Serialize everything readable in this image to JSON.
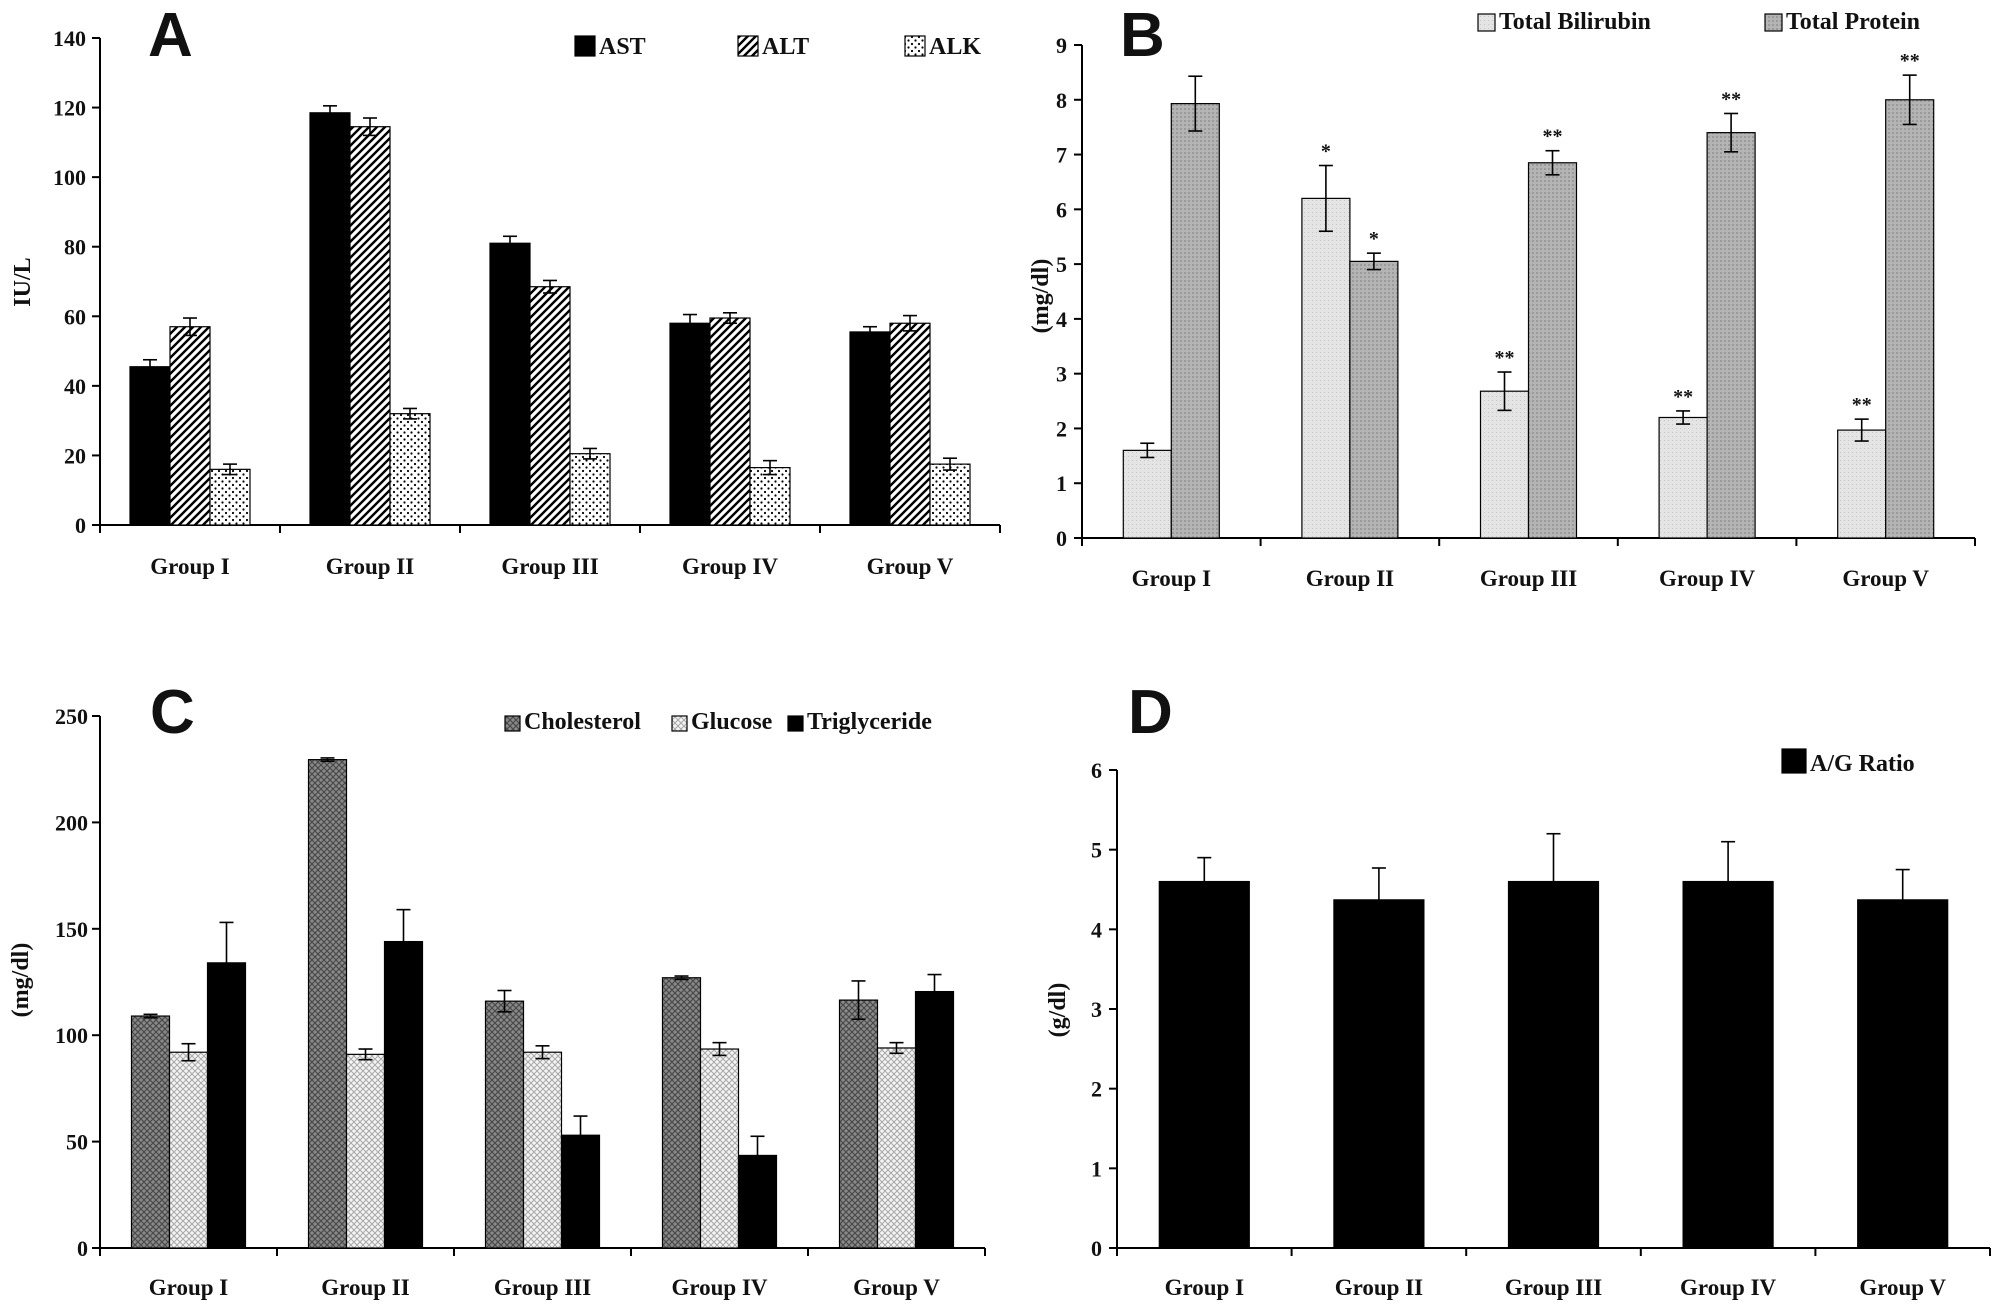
{
  "charts": [
    {
      "id": "A",
      "panel_label": "A",
      "ylabel": "IU/L",
      "yticks": [
        "0",
        "20",
        "40",
        "60",
        "80",
        "100",
        "120",
        "140"
      ],
      "ylim": [
        0,
        140
      ],
      "categories": [
        "Group I",
        "Group II",
        "Group III",
        "Group IV",
        "Group V"
      ],
      "legend": [
        "AST",
        "ALT",
        "ALK"
      ]
    },
    {
      "id": "B",
      "panel_label": "B",
      "ylabel": "(mg/dl)",
      "yticks": [
        "0",
        "1",
        "2",
        "3",
        "4",
        "5",
        "6",
        "7",
        "8",
        "9"
      ],
      "ylim": [
        0,
        9
      ],
      "categories": [
        "Group I",
        "Group II",
        "Group III",
        "Group IV",
        "Group V"
      ],
      "legend": [
        "Total Bilirubin",
        "Total Protein"
      ]
    },
    {
      "id": "C",
      "panel_label": "C",
      "ylabel": "(mg/dl)",
      "yticks": [
        "0",
        "50",
        "100",
        "150",
        "200",
        "250"
      ],
      "ylim": [
        0,
        250
      ],
      "categories": [
        "Group I",
        "Group II",
        "Group III",
        "Group IV",
        "Group V"
      ],
      "legend": [
        "Cholesterol",
        "Glucose",
        "Triglyceride"
      ]
    },
    {
      "id": "D",
      "panel_label": "D",
      "ylabel": "(g/dl)",
      "yticks": [
        "0",
        "1",
        "2",
        "3",
        "4",
        "5",
        "6"
      ],
      "ylim": [
        0,
        6
      ],
      "categories": [
        "Group I",
        "Group II",
        "Group III",
        "Group IV",
        "Group V"
      ],
      "legend": [
        "A/G Ratio"
      ]
    }
  ],
  "chart_data": [
    {
      "type": "bar",
      "title": "",
      "panel": "A",
      "xlabel": "",
      "ylabel": "IU/L",
      "ylim": [
        0,
        140
      ],
      "grid": false,
      "legend_position": "top-right",
      "categories": [
        "Group I",
        "Group II",
        "Group III",
        "Group IV",
        "Group V"
      ],
      "series": [
        {
          "name": "AST",
          "pattern": "solid-black",
          "values": [
            45.5,
            118.5,
            81,
            58,
            55.5
          ],
          "errors": [
            2,
            2,
            2,
            2.5,
            1.5
          ],
          "sig": [
            "",
            "",
            "",
            "",
            ""
          ]
        },
        {
          "name": "ALT",
          "pattern": "diagonal-hatch",
          "values": [
            57,
            114.5,
            68.5,
            59.5,
            58
          ],
          "errors": [
            2.5,
            2.5,
            1.8,
            1.5,
            2.2
          ],
          "sig": [
            "",
            "",
            "",
            "",
            ""
          ]
        },
        {
          "name": "ALK",
          "pattern": "dotted",
          "values": [
            16,
            32,
            20.5,
            16.5,
            17.5
          ],
          "errors": [
            1.5,
            1.5,
            1.5,
            2,
            1.7
          ],
          "sig": [
            "",
            "",
            "",
            "",
            ""
          ]
        }
      ]
    },
    {
      "type": "bar",
      "title": "",
      "panel": "B",
      "xlabel": "",
      "ylabel": "(mg/dl)",
      "ylim": [
        0,
        9
      ],
      "grid": false,
      "legend_position": "top-right",
      "categories": [
        "Group I",
        "Group II",
        "Group III",
        "Group IV",
        "Group V"
      ],
      "series": [
        {
          "name": "Total Bilirubin",
          "pattern": "light-grey",
          "values": [
            1.6,
            6.2,
            2.68,
            2.2,
            1.97
          ],
          "errors": [
            0.13,
            0.6,
            0.35,
            0.12,
            0.2
          ],
          "sig": [
            "",
            "*",
            "**",
            "**",
            "**"
          ]
        },
        {
          "name": "Total Protein",
          "pattern": "medium-grey",
          "values": [
            7.93,
            5.05,
            6.85,
            7.4,
            8.0
          ],
          "errors": [
            0.5,
            0.15,
            0.22,
            0.35,
            0.45
          ],
          "sig": [
            "",
            "*",
            "**",
            "**",
            "**"
          ]
        }
      ]
    },
    {
      "type": "bar",
      "title": "",
      "panel": "C",
      "xlabel": "",
      "ylabel": "(mg/dl)",
      "ylim": [
        0,
        250
      ],
      "grid": false,
      "legend_position": "top-right",
      "categories": [
        "Group I",
        "Group II",
        "Group III",
        "Group IV",
        "Group V"
      ],
      "series": [
        {
          "name": "Cholesterol",
          "pattern": "dark-crosshatch",
          "values": [
            109,
            229.5,
            116,
            127,
            116.5
          ],
          "errors": [
            0.8,
            0.8,
            5,
            0.8,
            9
          ],
          "sig": [
            "",
            "",
            "",
            "",
            ""
          ]
        },
        {
          "name": "Glucose",
          "pattern": "light-crosshatch",
          "values": [
            92,
            91,
            92,
            93.5,
            94
          ],
          "errors": [
            4,
            2.5,
            3,
            3,
            2.5
          ],
          "sig": [
            "",
            "",
            "",
            "",
            ""
          ]
        },
        {
          "name": "Triglyceride",
          "pattern": "solid-black",
          "values": [
            134,
            144,
            53,
            43.5,
            120.5
          ],
          "errors": [
            19,
            15,
            9,
            9,
            8
          ],
          "sig": [
            "",
            "",
            "",
            "",
            ""
          ]
        }
      ]
    },
    {
      "type": "bar",
      "title": "",
      "panel": "D",
      "xlabel": "",
      "ylabel": "(g/dl)",
      "ylim": [
        0,
        6
      ],
      "grid": false,
      "legend_position": "top-right",
      "categories": [
        "Group I",
        "Group II",
        "Group III",
        "Group IV",
        "Group V"
      ],
      "series": [
        {
          "name": "A/G Ratio",
          "pattern": "solid-black",
          "values": [
            4.6,
            4.37,
            4.6,
            4.6,
            4.37
          ],
          "errors": [
            0.3,
            0.4,
            0.6,
            0.5,
            0.38
          ],
          "sig": [
            "",
            "",
            "",
            "",
            ""
          ]
        }
      ]
    }
  ]
}
